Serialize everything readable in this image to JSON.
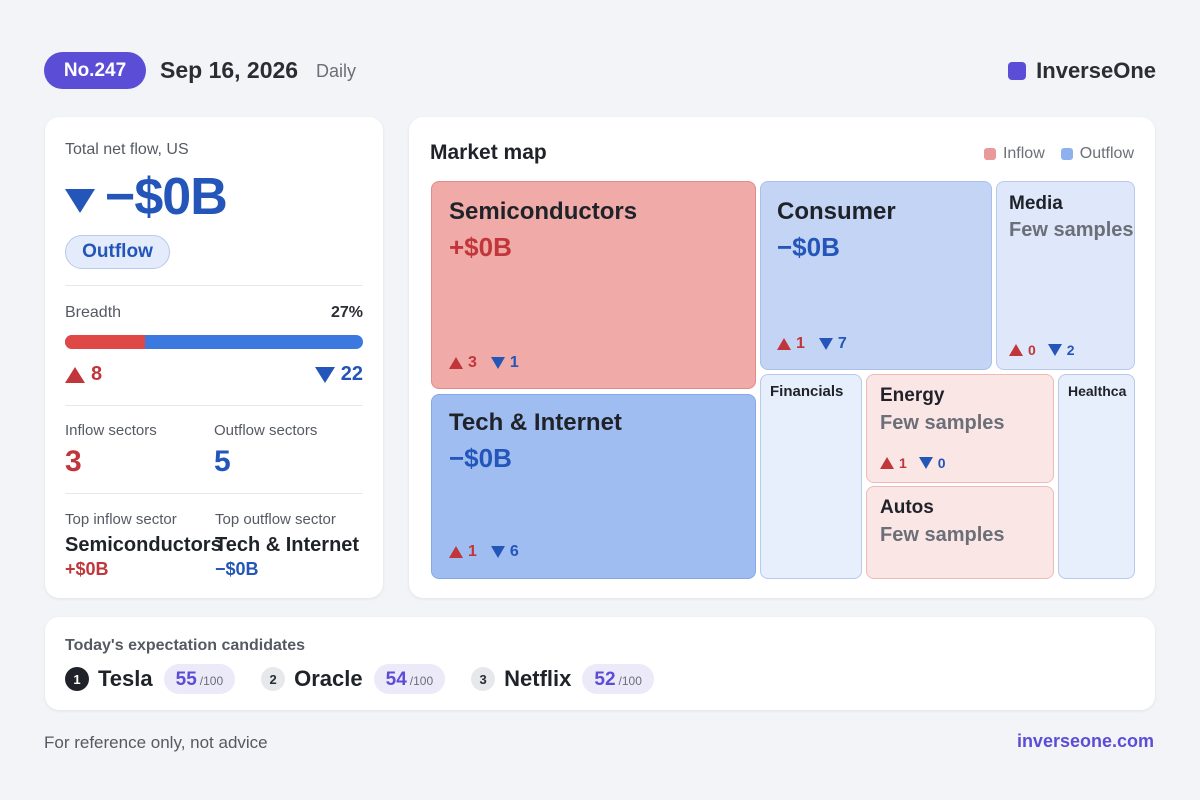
{
  "header": {
    "issue": "No.247",
    "date": "Sep 16, 2026",
    "period": "Daily",
    "brand": "InverseOne"
  },
  "summary": {
    "title": "Total net flow, US",
    "value": "−$0B",
    "direction": "Outflow",
    "breadth_label": "Breadth",
    "breadth_pct": "27%",
    "breadth_fraction": 0.27,
    "up_count": "8",
    "down_count": "22",
    "inflow_label": "Inflow sectors",
    "inflow_count": "3",
    "outflow_label": "Outflow sectors",
    "outflow_count": "5",
    "top_inflow_label": "Top inflow sector",
    "top_inflow_name": "Semiconductors",
    "top_inflow_value": "+$0B",
    "top_outflow_label": "Top outflow sector",
    "top_outflow_name": "Tech & Internet",
    "top_outflow_value": "−$0B"
  },
  "market_map": {
    "title": "Market map",
    "legend_inflow": "Inflow",
    "legend_outflow": "Outflow",
    "colors": {
      "inflow": "#e89a9a",
      "outflow": "#8fb0ee"
    },
    "tiles": [
      {
        "name": "Semiconductors",
        "value": "+$0B",
        "up": "3",
        "down": "1"
      },
      {
        "name": "Consumer",
        "value": "−$0B",
        "up": "1",
        "down": "7"
      },
      {
        "name": "Media",
        "value": "Few samples",
        "up": "0",
        "down": "2"
      },
      {
        "name": "Tech & Internet",
        "value": "−$0B",
        "up": "1",
        "down": "6"
      },
      {
        "name": "Financials"
      },
      {
        "name": "Energy",
        "value": "Few samples",
        "up": "1",
        "down": "0"
      },
      {
        "name": "Healthca"
      },
      {
        "name": "Autos",
        "value": "Few samples"
      }
    ]
  },
  "candidates": {
    "title": "Today's expectation candidates",
    "items": [
      {
        "rank": "1",
        "name": "Tesla",
        "score": "55",
        "max": "/100"
      },
      {
        "rank": "2",
        "name": "Oracle",
        "score": "54",
        "max": "/100"
      },
      {
        "rank": "3",
        "name": "Netflix",
        "score": "52",
        "max": "/100"
      }
    ]
  },
  "footer": {
    "disclaimer": "For reference only, not advice",
    "site": "inverseone.com"
  }
}
